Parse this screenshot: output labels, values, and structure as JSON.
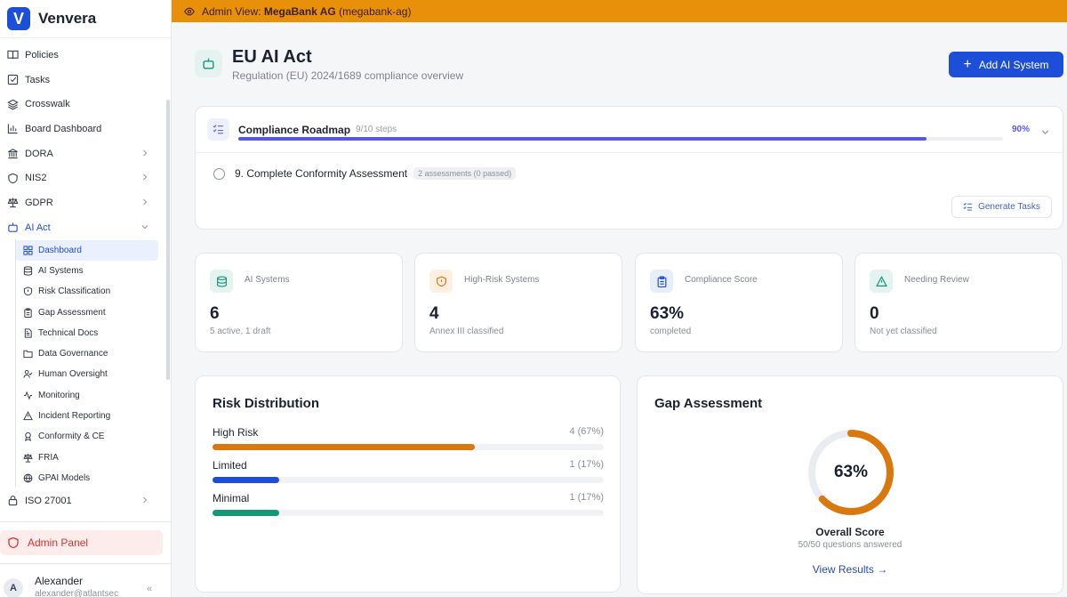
{
  "brand": {
    "name": "Venvera",
    "logo_letter": "V"
  },
  "banner": {
    "prefix": "Admin View:",
    "org": "MegaBank AG",
    "slug": "(megabank-ag)"
  },
  "sidebar": {
    "items": [
      {
        "label": "Policies",
        "icon": "book-icon"
      },
      {
        "label": "Tasks",
        "icon": "check-square-icon"
      },
      {
        "label": "Crosswalk",
        "icon": "layers-icon"
      },
      {
        "label": "Board Dashboard",
        "icon": "bar-chart-icon"
      },
      {
        "label": "DORA",
        "icon": "bank-icon"
      },
      {
        "label": "NIS2",
        "icon": "shield-icon"
      },
      {
        "label": "GDPR",
        "icon": "scale-icon"
      },
      {
        "label": "AI Act",
        "icon": "bot-icon"
      }
    ],
    "ai_act_sub": [
      {
        "label": "Dashboard",
        "icon": "grid-icon"
      },
      {
        "label": "AI Systems",
        "icon": "database-icon"
      },
      {
        "label": "Risk Classification",
        "icon": "shield-alert-icon"
      },
      {
        "label": "Gap Assessment",
        "icon": "clipboard-icon"
      },
      {
        "label": "Technical Docs",
        "icon": "file-text-icon"
      },
      {
        "label": "Data Governance",
        "icon": "folder-icon"
      },
      {
        "label": "Human Oversight",
        "icon": "user-check-icon"
      },
      {
        "label": "Monitoring",
        "icon": "activity-icon"
      },
      {
        "label": "Incident Reporting",
        "icon": "alert-triangle-icon"
      },
      {
        "label": "Conformity & CE",
        "icon": "award-icon"
      },
      {
        "label": "FRIA",
        "icon": "scale-icon"
      },
      {
        "label": "GPAI Models",
        "icon": "globe-icon"
      }
    ],
    "after_items": [
      {
        "label": "ISO 27001",
        "icon": "lock-icon"
      }
    ],
    "admin_panel": "Admin Panel",
    "user": {
      "name": "Alexander",
      "email": "alexander@atlantsec",
      "initial": "A"
    }
  },
  "header": {
    "title": "EU AI Act",
    "subtitle": "Regulation (EU) 2024/1689 compliance overview",
    "add_button": "Add AI System"
  },
  "roadmap": {
    "title": "Compliance Roadmap",
    "steps": "9/10 steps",
    "progress": 0.9,
    "percent_label": "90%",
    "current_step": "9. Complete Conformity Assessment",
    "current_badge": "2 assessments (0 passed)",
    "generate_button": "Generate Tasks"
  },
  "stats": [
    {
      "label": "AI Systems",
      "value": "6",
      "sub": "5 active, 1 draft",
      "icon": "database-icon",
      "bg": "#e4f3ef",
      "fg": "#149878"
    },
    {
      "label": "High-Risk Systems",
      "value": "4",
      "sub": "Annex III classified",
      "icon": "shield-alert-icon",
      "bg": "#fdf0e2",
      "fg": "#d9780e"
    },
    {
      "label": "Compliance Score",
      "value": "63%",
      "sub": "completed",
      "icon": "clipboard-icon",
      "bg": "#e7edfb",
      "fg": "#1d4ed8"
    },
    {
      "label": "Needing Review",
      "value": "0",
      "sub": "Not yet classified",
      "icon": "alert-triangle-icon",
      "bg": "#e4f3ef",
      "fg": "#149878"
    }
  ],
  "risk": {
    "title": "Risk Distribution",
    "rows": [
      {
        "label": "High Risk",
        "count": "4 (67%)",
        "fraction": 0.67,
        "color": "#d9780e"
      },
      {
        "label": "Limited",
        "count": "1 (17%)",
        "fraction": 0.17,
        "color": "#1d4ed8"
      },
      {
        "label": "Minimal",
        "count": "1 (17%)",
        "fraction": 0.17,
        "color": "#149878"
      }
    ]
  },
  "gap": {
    "title": "Gap Assessment",
    "score": 0.63,
    "score_label": "63%",
    "overall_label": "Overall Score",
    "answered": "50/50 questions answered",
    "view_results": "View Results →",
    "ring_color": "#d9780e"
  }
}
